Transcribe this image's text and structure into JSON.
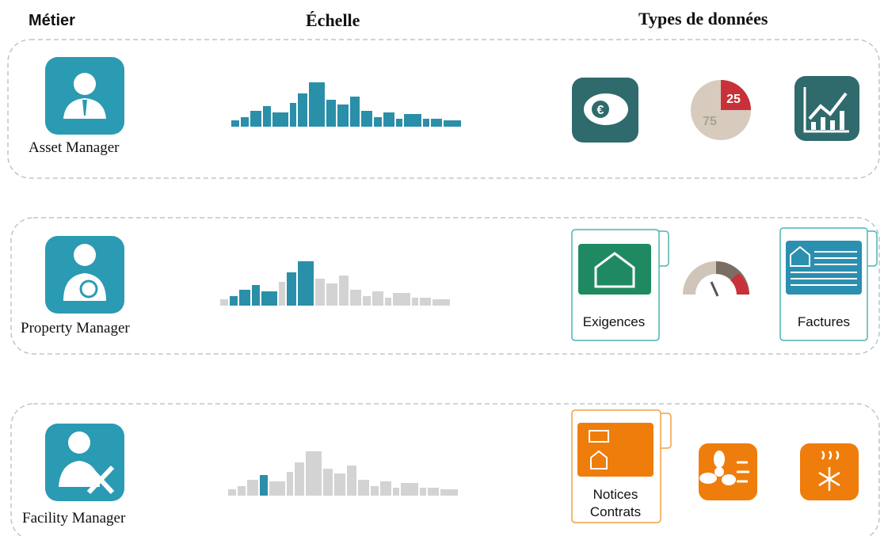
{
  "header": {
    "role": "Métier",
    "scale": "Échelle",
    "types": "Types de données"
  },
  "rows": [
    {
      "role": "Asset Manager",
      "pie": {
        "small": "25",
        "large": "75"
      }
    },
    {
      "role": "Property Manager",
      "cards": [
        "Exigences",
        "Factures"
      ]
    },
    {
      "role": "Facility Manager",
      "cards": [
        "Notices",
        "Contrats"
      ]
    }
  ]
}
